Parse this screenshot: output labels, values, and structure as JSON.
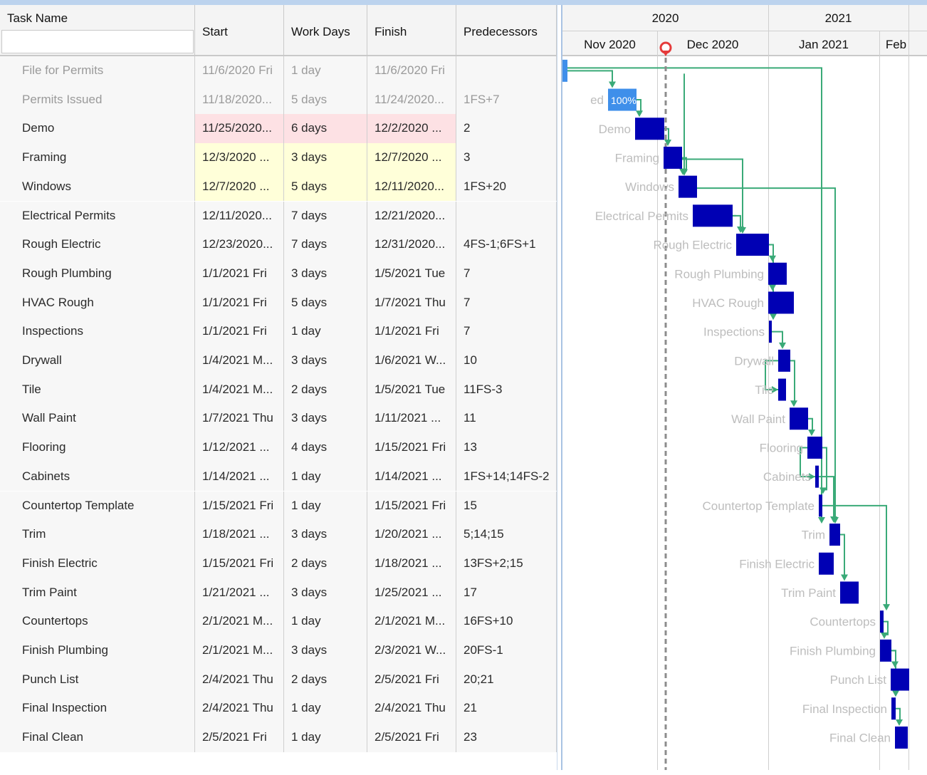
{
  "columns": {
    "task_name": "Task Name",
    "start": "Start",
    "work_days": "Work Days",
    "finish": "Finish",
    "predecessors": "Predecessors"
  },
  "task_filter": {
    "value": "",
    "placeholder": ""
  },
  "timeline": {
    "years": [
      {
        "label": "2020"
      },
      {
        "label": "2021"
      }
    ],
    "months": [
      {
        "label": "Nov 2020"
      },
      {
        "label": "Dec 2020"
      },
      {
        "label": "Jan 2021"
      },
      {
        "label": "Feb"
      }
    ]
  },
  "colors": {
    "bar": "#0000b4",
    "bar_done": "#3f8fea",
    "link": "#3aaa78",
    "today_line": "#8c8c8c",
    "today_marker": "#e53b3b",
    "label_faded": "#bdbdbd"
  },
  "tasks": [
    {
      "name": "File for Permits",
      "start": "11/6/2020 Fri",
      "days": "1 day",
      "finish": "11/6/2020 Fri",
      "pred": "",
      "done": true,
      "hl": "",
      "bar_label": "",
      "bar_pct": ""
    },
    {
      "name": "Permits Issued",
      "start": "11/18/2020...",
      "days": "5 days",
      "finish": "11/24/2020...",
      "pred": "1FS+7",
      "done": true,
      "hl": "",
      "bar_label": "ed",
      "bar_pct": "100%"
    },
    {
      "name": "Demo",
      "start": "11/25/2020...",
      "days": "6 days",
      "finish": "12/2/2020 ...",
      "pred": "2",
      "done": false,
      "hl": "red",
      "bar_label": "Demo",
      "bar_pct": ""
    },
    {
      "name": "Framing",
      "start": "12/3/2020 ...",
      "days": "3 days",
      "finish": "12/7/2020 ...",
      "pred": "3",
      "done": false,
      "hl": "yellow",
      "bar_label": "Framing",
      "bar_pct": ""
    },
    {
      "name": "Windows",
      "start": "12/7/2020 ...",
      "days": "5 days",
      "finish": "12/11/2020...",
      "pred": "1FS+20",
      "done": false,
      "hl": "yellow",
      "bar_label": "Windows",
      "bar_pct": ""
    },
    {
      "name": "Electrical Permits",
      "start": "12/11/2020...",
      "days": "7 days",
      "finish": "12/21/2020...",
      "pred": "",
      "done": false,
      "hl": "",
      "bar_label": "Electrical Permits",
      "bar_pct": ""
    },
    {
      "name": "Rough Electric",
      "start": "12/23/2020...",
      "days": "7 days",
      "finish": "12/31/2020...",
      "pred": "4FS-1;6FS+1",
      "done": false,
      "hl": "",
      "bar_label": "Rough Electric",
      "bar_pct": ""
    },
    {
      "name": "Rough Plumbing",
      "start": "1/1/2021 Fri",
      "days": "3 days",
      "finish": "1/5/2021 Tue",
      "pred": "7",
      "done": false,
      "hl": "",
      "bar_label": "Rough Plumbing",
      "bar_pct": ""
    },
    {
      "name": "HVAC Rough",
      "start": "1/1/2021 Fri",
      "days": "5 days",
      "finish": "1/7/2021 Thu",
      "pred": "7",
      "done": false,
      "hl": "",
      "bar_label": "HVAC Rough",
      "bar_pct": ""
    },
    {
      "name": "Inspections",
      "start": "1/1/2021 Fri",
      "days": "1 day",
      "finish": "1/1/2021 Fri",
      "pred": "7",
      "done": false,
      "hl": "",
      "bar_label": "Inspections",
      "bar_pct": ""
    },
    {
      "name": "Drywall",
      "start": "1/4/2021 M...",
      "days": "3 days",
      "finish": "1/6/2021 W...",
      "pred": "10",
      "done": false,
      "hl": "",
      "bar_label": "Drywall",
      "bar_pct": ""
    },
    {
      "name": "Tile",
      "start": "1/4/2021 M...",
      "days": "2 days",
      "finish": "1/5/2021 Tue",
      "pred": "11FS-3",
      "done": false,
      "hl": "",
      "bar_label": "Tile",
      "bar_pct": ""
    },
    {
      "name": "Wall Paint",
      "start": "1/7/2021 Thu",
      "days": "3 days",
      "finish": "1/11/2021 ...",
      "pred": "11",
      "done": false,
      "hl": "",
      "bar_label": "Wall Paint",
      "bar_pct": ""
    },
    {
      "name": "Flooring",
      "start": "1/12/2021 ...",
      "days": "4 days",
      "finish": "1/15/2021 Fri",
      "pred": "13",
      "done": false,
      "hl": "",
      "bar_label": "Flooring",
      "bar_pct": ""
    },
    {
      "name": "Cabinets",
      "start": "1/14/2021 ...",
      "days": "1 day",
      "finish": "1/14/2021 ...",
      "pred": "1FS+14;14FS-2",
      "done": false,
      "hl": "",
      "bar_label": "Cabinets",
      "bar_pct": ""
    },
    {
      "name": "Countertop Template",
      "start": "1/15/2021 Fri",
      "days": "1 day",
      "finish": "1/15/2021 Fri",
      "pred": "15",
      "done": false,
      "hl": "",
      "bar_label": "Countertop Template",
      "bar_pct": ""
    },
    {
      "name": "Trim",
      "start": "1/18/2021 ...",
      "days": "3 days",
      "finish": "1/20/2021 ...",
      "pred": "5;14;15",
      "done": false,
      "hl": "",
      "bar_label": "Trim",
      "bar_pct": ""
    },
    {
      "name": "Finish Electric",
      "start": "1/15/2021 Fri",
      "days": "2 days",
      "finish": "1/18/2021 ...",
      "pred": "13FS+2;15",
      "done": false,
      "hl": "",
      "bar_label": "Finish Electric",
      "bar_pct": ""
    },
    {
      "name": "Trim Paint",
      "start": "1/21/2021 ...",
      "days": "3 days",
      "finish": "1/25/2021 ...",
      "pred": "17",
      "done": false,
      "hl": "",
      "bar_label": "Trim Paint",
      "bar_pct": ""
    },
    {
      "name": "Countertops",
      "start": "2/1/2021 M...",
      "days": "1 day",
      "finish": "2/1/2021 M...",
      "pred": "16FS+10",
      "done": false,
      "hl": "",
      "bar_label": "Countertops",
      "bar_pct": ""
    },
    {
      "name": "Finish Plumbing",
      "start": "2/1/2021 M...",
      "days": "3 days",
      "finish": "2/3/2021 W...",
      "pred": "20FS-1",
      "done": false,
      "hl": "",
      "bar_label": "Finish Plumbing",
      "bar_pct": ""
    },
    {
      "name": "Punch List",
      "start": "2/4/2021 Thu",
      "days": "2 days",
      "finish": "2/5/2021 Fri",
      "pred": "20;21",
      "done": false,
      "hl": "",
      "bar_label": "Punch List",
      "bar_pct": ""
    },
    {
      "name": "Final Inspection",
      "start": "2/4/2021 Thu",
      "days": "1 day",
      "finish": "2/4/2021 Thu",
      "pred": "21",
      "done": false,
      "hl": "",
      "bar_label": "Final Inspection",
      "bar_pct": ""
    },
    {
      "name": "Final Clean",
      "start": "2/5/2021 Fri",
      "days": "1 day",
      "finish": "2/5/2021 Fri",
      "pred": "23",
      "done": false,
      "hl": "",
      "bar_label": "Final Clean",
      "bar_pct": ""
    }
  ]
}
